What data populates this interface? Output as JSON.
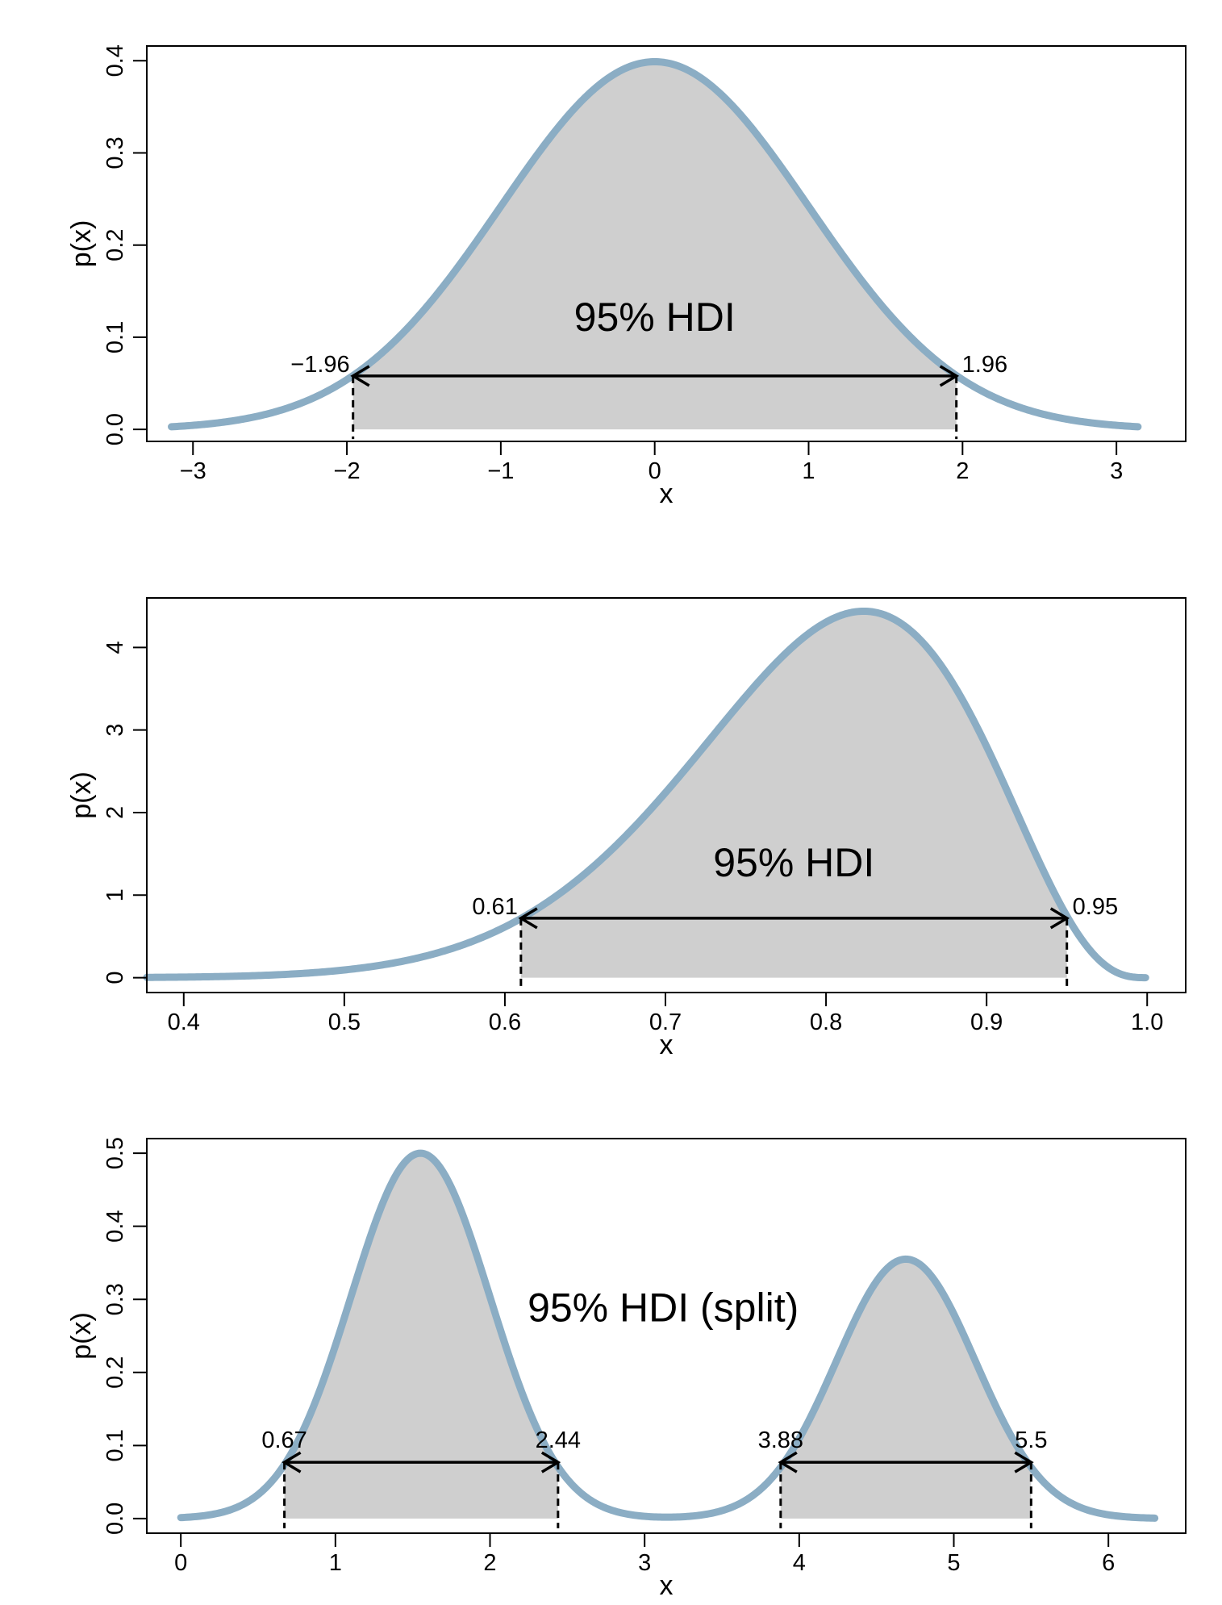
{
  "style": {
    "curve_color": "#8badc4",
    "fill_color": "#cfcfcf",
    "axis_color": "#000000",
    "text_color": "#000000"
  },
  "chart_data": [
    {
      "type": "area",
      "xlabel": "x",
      "ylabel": "p(x)",
      "xlim": [
        -3.3,
        3.45
      ],
      "ylim": [
        -0.013,
        0.416
      ],
      "x_ticks": [
        {
          "value": -3,
          "label": "−3"
        },
        {
          "value": -2,
          "label": "−2"
        },
        {
          "value": -1,
          "label": "−1"
        },
        {
          "value": 0,
          "label": "0"
        },
        {
          "value": 1,
          "label": "1"
        },
        {
          "value": 2,
          "label": "2"
        },
        {
          "value": 3,
          "label": "3"
        }
      ],
      "y_ticks": [
        {
          "value": 0.0,
          "label": "0.0"
        },
        {
          "value": 0.1,
          "label": "0.1"
        },
        {
          "value": 0.2,
          "label": "0.2"
        },
        {
          "value": 0.3,
          "label": "0.3"
        },
        {
          "value": 0.4,
          "label": "0.4"
        }
      ],
      "density": {
        "kind": "normal",
        "mean": 0,
        "sd": 1,
        "x_range": [
          -3.14,
          3.14
        ]
      },
      "hdi_label": "95% HDI",
      "hdi_label_position": {
        "x": 0.0,
        "y": 0.107
      },
      "hdi_segments": [
        {
          "lower": -1.96,
          "upper": 1.96,
          "height": 0.058,
          "lower_label": "−1.96",
          "upper_label": "1.96"
        }
      ]
    },
    {
      "type": "area",
      "xlabel": "x",
      "ylabel": "p(x)",
      "xlim": [
        0.377,
        1.024
      ],
      "ylim": [
        -0.18,
        4.6
      ],
      "x_ticks": [
        {
          "value": 0.4,
          "label": "0.4"
        },
        {
          "value": 0.5,
          "label": "0.5"
        },
        {
          "value": 0.6,
          "label": "0.6"
        },
        {
          "value": 0.7,
          "label": "0.7"
        },
        {
          "value": 0.8,
          "label": "0.8"
        },
        {
          "value": 0.9,
          "label": "0.9"
        },
        {
          "value": 1.0,
          "label": "1.0"
        }
      ],
      "y_ticks": [
        {
          "value": 0,
          "label": "0"
        },
        {
          "value": 1,
          "label": "1"
        },
        {
          "value": 2,
          "label": "2"
        },
        {
          "value": 3,
          "label": "3"
        },
        {
          "value": 4,
          "label": "4"
        }
      ],
      "density": {
        "kind": "beta",
        "a": 15,
        "b": 4,
        "x_range": [
          0.377,
          0.999
        ]
      },
      "hdi_label": "95% HDI",
      "hdi_label_position": {
        "x": 0.78,
        "y": 1.23
      },
      "hdi_segments": [
        {
          "lower": 0.61,
          "upper": 0.95,
          "height": 0.72,
          "lower_label": "0.61",
          "upper_label": "0.95"
        }
      ]
    },
    {
      "type": "area",
      "xlabel": "x",
      "ylabel": "p(x)",
      "xlim": [
        -0.22,
        6.5
      ],
      "ylim": [
        -0.02,
        0.52
      ],
      "x_ticks": [
        {
          "value": 0,
          "label": "0"
        },
        {
          "value": 1,
          "label": "1"
        },
        {
          "value": 2,
          "label": "2"
        },
        {
          "value": 3,
          "label": "3"
        },
        {
          "value": 4,
          "label": "4"
        },
        {
          "value": 5,
          "label": "5"
        },
        {
          "value": 6,
          "label": "6"
        }
      ],
      "y_ticks": [
        {
          "value": 0.0,
          "label": "0.0"
        },
        {
          "value": 0.1,
          "label": "0.1"
        },
        {
          "value": 0.2,
          "label": "0.2"
        },
        {
          "value": 0.3,
          "label": "0.3"
        },
        {
          "value": 0.4,
          "label": "0.4"
        },
        {
          "value": 0.5,
          "label": "0.5"
        }
      ],
      "density": {
        "kind": "mixture",
        "components": [
          {
            "mean": 1.55,
            "sd": 0.45,
            "peak": 0.5
          },
          {
            "mean": 4.69,
            "sd": 0.45,
            "peak": 0.355
          }
        ],
        "x_range": [
          0.0,
          6.3
        ]
      },
      "hdi_label": "95% HDI (split)",
      "hdi_label_position": {
        "x": 3.12,
        "y": 0.27
      },
      "hdi_segments": [
        {
          "lower": 0.67,
          "upper": 2.44,
          "height": 0.077,
          "lower_label": "0.67",
          "upper_label": "2.44"
        },
        {
          "lower": 3.88,
          "upper": 5.5,
          "height": 0.077,
          "lower_label": "3.88",
          "upper_label": "5.5"
        }
      ]
    }
  ]
}
